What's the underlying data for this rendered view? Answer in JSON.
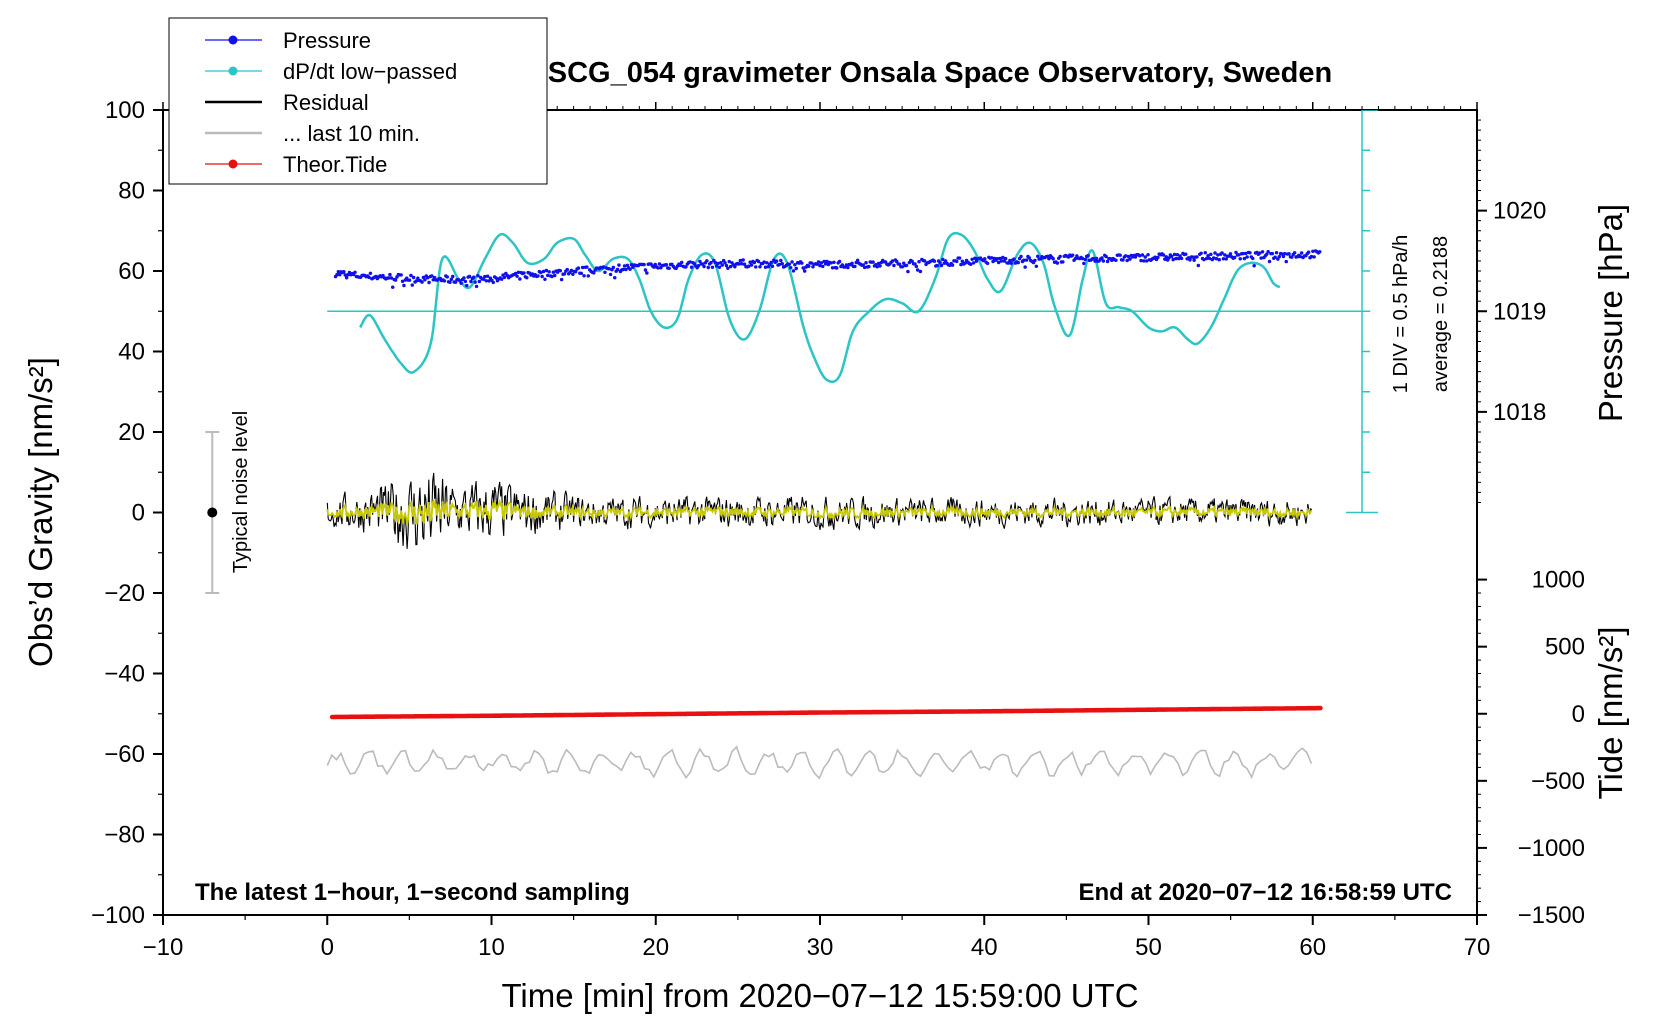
{
  "chart_data": {
    "type": "line",
    "title": "SCG_054 gravimeter Onsala Space Observatory, Sweden",
    "xlabel": "Time [min] from 2020−07−12 15:59:00 UTC",
    "ylabel_left": "Obs’d Gravity [nm/s²]",
    "ylabel_right_pressure": "Pressure [hPa]",
    "ylabel_right_tide": "Tide [nm/s²]",
    "xlim": [
      -10,
      70
    ],
    "ylim": [
      -100,
      100
    ],
    "x_ticks": [
      -10,
      0,
      10,
      20,
      30,
      40,
      50,
      60,
      70
    ],
    "x_tick_labels": [
      "−10",
      "0",
      "10",
      "20",
      "30",
      "40",
      "50",
      "60",
      "70"
    ],
    "y_ticks": [
      -100,
      -80,
      -60,
      -40,
      -20,
      0,
      20,
      40,
      60,
      80,
      100
    ],
    "y_tick_labels": [
      "−100",
      "−80",
      "−60",
      "−40",
      "−20",
      "0",
      "20",
      "40",
      "60",
      "80",
      "100"
    ],
    "pressure_axis": {
      "ticks": [
        1018,
        1019,
        1020
      ],
      "tick_labels": [
        "1018",
        "1019",
        "1020"
      ],
      "gravity_at_1019": 50,
      "gravity_per_hPa": 25
    },
    "tide_axis": {
      "ticks": [
        -1500,
        -1000,
        -500,
        0,
        500,
        1000
      ],
      "tick_labels": [
        "−1500",
        "−1000",
        "−500",
        "0",
        "500",
        "1000"
      ],
      "gravity_at_0": -50,
      "gravity_per_unit": 0.03333
    },
    "legend": {
      "position": "top-left",
      "entries": [
        {
          "label": "Pressure",
          "color": "#1010ee",
          "marker": "dot"
        },
        {
          "label": "dP/dt low−passed",
          "color": "#2cc4c4",
          "marker": "dot"
        },
        {
          "label": "Residual",
          "color": "#000000",
          "marker": "line"
        },
        {
          "label": "... last 10 min.",
          "color": "#bbbbbb",
          "marker": "line"
        },
        {
          "label": "Theor.Tide",
          "color": "#e81010",
          "marker": "dot"
        }
      ]
    },
    "annotations": {
      "bottom_left": "The latest 1−hour, 1−second sampling",
      "bottom_right": "End at 2020−07−12 16:58:59 UTC",
      "noise_label": "Typical noise level",
      "dpdt_scale": "1 DIV = 0.5 hPa/h",
      "dpdt_average": "average = 0.2188"
    },
    "noise_bar": {
      "x": -7,
      "center": 0,
      "half_range": 20
    },
    "dpdt_reference_level": 50,
    "dpdt_scale_bar": {
      "x": 63,
      "y_from": 0,
      "y_to": 100,
      "divisions": 10
    },
    "series": [
      {
        "name": "Pressure",
        "color": "#1010ee",
        "x": [
          0.5,
          2,
          4,
          6,
          8,
          10,
          12,
          14,
          16,
          18,
          20,
          22,
          24,
          26,
          28,
          30,
          32,
          34,
          36,
          38,
          40,
          42,
          44,
          46,
          48,
          50,
          52,
          54,
          56,
          58,
          60.5
        ],
        "values": [
          59.5,
          58.8,
          58.4,
          58.0,
          57.8,
          58.2,
          59.0,
          59.6,
          60.2,
          60.8,
          61.2,
          61.6,
          61.8,
          61.9,
          61.7,
          61.6,
          61.8,
          61.9,
          62.0,
          62.3,
          62.6,
          62.8,
          63.0,
          63.1,
          63.2,
          63.4,
          63.5,
          63.7,
          63.8,
          64.0,
          64.2
        ],
        "jitter": 1.8
      },
      {
        "name": "dP/dt low-passed",
        "color": "#2cc4c4",
        "x": [
          2,
          2.6,
          3.5,
          4.5,
          5.3,
          6.3,
          7.0,
          8.0,
          8.7,
          9.6,
          10.5,
          11.3,
          12.2,
          13.2,
          14.0,
          15.0,
          15.7,
          16.5,
          17.4,
          18.3,
          19.0,
          19.7,
          20.5,
          21.3,
          22.0,
          22.8,
          23.6,
          24.5,
          25.4,
          26.3,
          27.2,
          28.0,
          29.0,
          29.7,
          30.4,
          31.2,
          32.0,
          33.0,
          34.0,
          35.0,
          36.0,
          37.0,
          37.8,
          38.6,
          39.4,
          40.2,
          41.0,
          42.0,
          42.8,
          43.6,
          44.3,
          45.2,
          46.0,
          46.6,
          47.4,
          48.2,
          49.0,
          50.0,
          50.8,
          51.6,
          52.4,
          53.0,
          53.8,
          54.6,
          55.4,
          56.2,
          57.0,
          57.6,
          58.0
        ],
        "values": [
          46,
          49,
          43,
          37,
          35,
          42,
          63,
          58,
          56,
          63,
          69,
          67,
          62,
          63,
          67,
          68,
          64,
          60,
          63,
          63,
          58,
          50,
          46,
          48,
          58,
          64,
          62,
          48,
          43,
          50,
          63,
          62,
          46,
          38,
          33,
          34,
          45,
          50,
          53,
          52,
          50,
          58,
          68,
          69,
          65,
          58,
          55,
          64,
          67,
          62,
          51,
          44,
          58,
          65,
          52,
          51,
          50,
          46,
          45,
          46,
          43,
          42,
          46,
          53,
          60,
          62,
          61,
          57,
          56
        ]
      },
      {
        "name": "Residual",
        "color": "#000000",
        "x": [
          0,
          2,
          4,
          6,
          8,
          10,
          12,
          14,
          16,
          18,
          20,
          22,
          24,
          26,
          28,
          30,
          32,
          34,
          36,
          38,
          40,
          42,
          44,
          46,
          48,
          50,
          52,
          54,
          56,
          58,
          60
        ],
        "values": [
          0,
          0.2,
          0,
          -0.2,
          0.3,
          0.4,
          0.1,
          0,
          -0.1,
          0,
          0.1,
          0,
          0.2,
          0,
          0.1,
          0,
          -0.1,
          0.1,
          0,
          0.1,
          0,
          0.2,
          0,
          0.1,
          0,
          0,
          0.1,
          0,
          0.1,
          0,
          0
        ],
        "amplitude": [
          4,
          5,
          8,
          12,
          7,
          8,
          6,
          5,
          4,
          4,
          4,
          4,
          4,
          4,
          4,
          4,
          4,
          3.5,
          3.5,
          3.5,
          3.5,
          3.5,
          3.5,
          3.5,
          3.5,
          3.5,
          3.5,
          3.5,
          3.5,
          3.5,
          3.5
        ],
        "smoothed_color": "#c8c800"
      },
      {
        "name": "... last 10 min.",
        "color": "#bbbbbb",
        "x": [
          0,
          60
        ],
        "values": [
          -62,
          -62
        ],
        "amplitude": 3
      },
      {
        "name": "Theor.Tide",
        "color": "#e81010",
        "x": [
          0.3,
          10,
          20,
          30,
          40,
          50,
          60.5
        ],
        "values": [
          -50.8,
          -50.5,
          -50.1,
          -49.7,
          -49.4,
          -49.0,
          -48.6
        ]
      }
    ]
  }
}
